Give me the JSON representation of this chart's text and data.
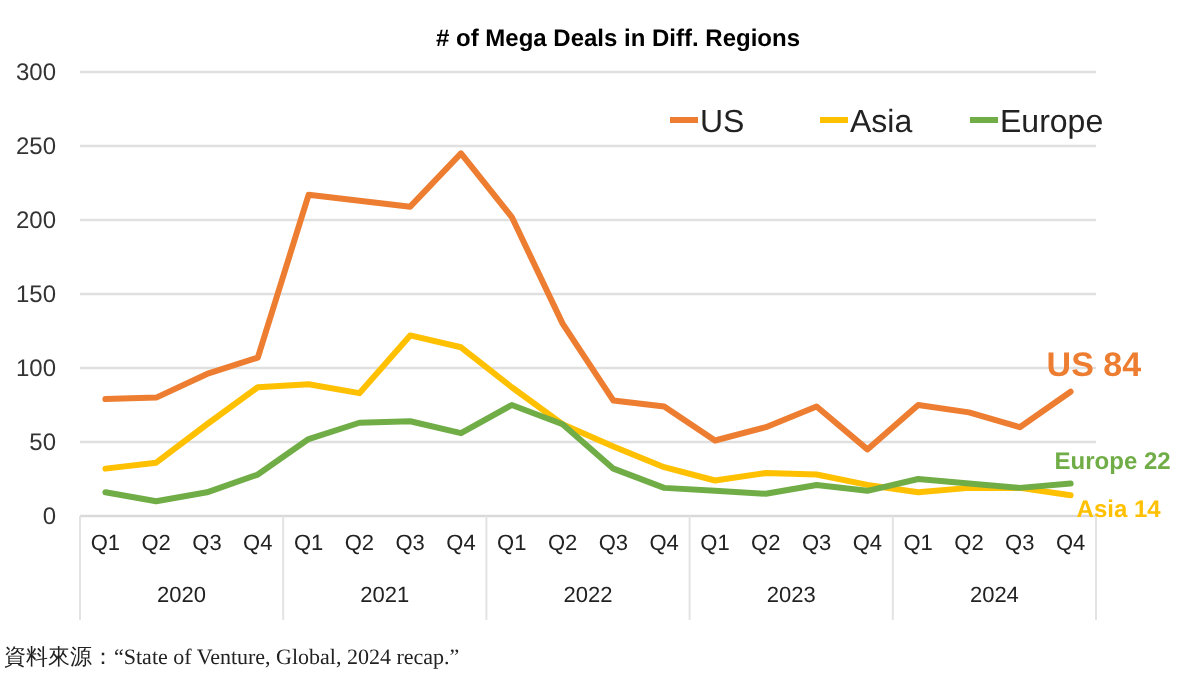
{
  "chart_data": {
    "type": "line",
    "title": "# of Mega Deals in Diff. Regions",
    "categories": [
      "Q1",
      "Q2",
      "Q3",
      "Q4",
      "Q1",
      "Q2",
      "Q3",
      "Q4",
      "Q1",
      "Q2",
      "Q3",
      "Q4",
      "Q1",
      "Q2",
      "Q3",
      "Q4",
      "Q1",
      "Q2",
      "Q3",
      "Q4"
    ],
    "series": [
      {
        "name": "US",
        "color": "#ed7d31",
        "values": [
          79,
          80,
          96,
          107,
          217,
          213,
          209,
          245,
          202,
          130,
          78,
          74,
          51,
          60,
          74,
          45,
          75,
          70,
          60,
          84
        ],
        "value_labels": [
          null,
          null,
          null,
          null,
          null,
          null,
          null,
          null,
          null,
          null,
          null,
          null,
          null,
          null,
          null,
          null,
          null,
          null,
          null,
          "US  84"
        ]
      },
      {
        "name": "Asia",
        "color": "#ffc000",
        "values": [
          32,
          36,
          62,
          87,
          89,
          83,
          122,
          114,
          87,
          62,
          47,
          33,
          24,
          29,
          28,
          21,
          16,
          19,
          19,
          14
        ],
        "value_labels": [
          null,
          null,
          null,
          null,
          null,
          null,
          null,
          null,
          null,
          null,
          null,
          null,
          null,
          null,
          null,
          null,
          null,
          null,
          null,
          "Asia 14"
        ]
      },
      {
        "name": "Europe",
        "color": "#70ad47",
        "values": [
          16,
          10,
          16,
          28,
          52,
          63,
          64,
          56,
          75,
          62,
          32,
          19,
          17,
          15,
          21,
          17,
          25,
          22,
          19,
          22
        ],
        "value_labels": [
          null,
          null,
          null,
          null,
          null,
          null,
          null,
          null,
          null,
          null,
          null,
          null,
          null,
          null,
          null,
          null,
          null,
          null,
          null,
          "Europe 22"
        ]
      }
    ],
    "ylim": [
      0,
      300
    ],
    "yticks": [
      0,
      50,
      100,
      150,
      200,
      250,
      300
    ],
    "grid": "y",
    "legend": "top right",
    "marker": "none",
    "line_style": "solid",
    "annotations": [
      "2020",
      "2021",
      "2022",
      "2023",
      "2024",
      "資料來源：“State of Venture, Global, 2024 recap.”"
    ]
  }
}
